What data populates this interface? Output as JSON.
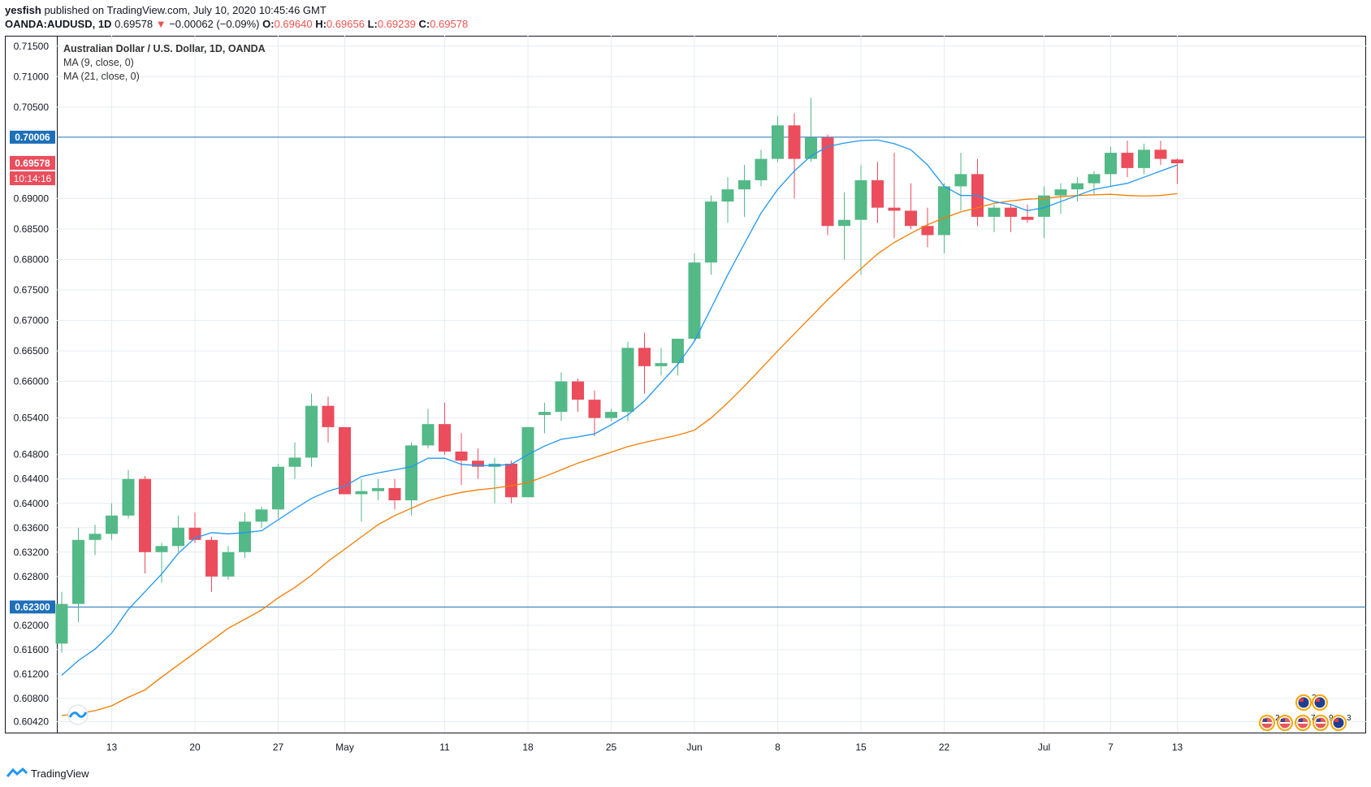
{
  "header": {
    "publisher": "yesfish",
    "published_text": "published on TradingView.com, July 10, 2020 10:45:46 GMT",
    "symbol": "OANDA:AUDUSD, 1D",
    "last": "0.69578",
    "change_arrow": "▼",
    "change": "−0.00062 (−0.09%)",
    "o_label": "O:",
    "o": "0.69640",
    "h_label": "H:",
    "h": "0.69656",
    "l_label": "L:",
    "l": "0.69239",
    "c_label": "C:",
    "c": "0.69578"
  },
  "legend": {
    "title": "Australian Dollar / U.S. Dollar, 1D, OANDA",
    "ma9": "MA (9, close, 0)",
    "ma21": "MA (21, close, 0)"
  },
  "footer": {
    "brand": "TradingView",
    "logo_icon": "tradingview-logo-icon"
  },
  "colors": {
    "up": "#53b987",
    "down": "#eb4d5c",
    "ma9": "#2196f3",
    "ma21": "#f57c00",
    "hline": "#1e6fb8",
    "price_badge": "#eb4d5c",
    "hline_badge": "#1e6fb8",
    "grid": "#e6ecf2"
  },
  "chart_data": {
    "type": "candlestick",
    "title": "Australian Dollar / U.S. Dollar, 1D, OANDA",
    "ylim": [
      0.6024,
      0.7167
    ],
    "y_ticks": [
      "0.71500",
      "0.71000",
      "0.70500",
      "0.69000",
      "0.68500",
      "0.68000",
      "0.67500",
      "0.67000",
      "0.66500",
      "0.66000",
      "0.65400",
      "0.64800",
      "0.64400",
      "0.64000",
      "0.63600",
      "0.63200",
      "0.62800",
      "0.62000",
      "0.61600",
      "0.61200",
      "0.60800",
      "0.60420"
    ],
    "x_ticks": [
      {
        "label": "13",
        "index": 3
      },
      {
        "label": "20",
        "index": 8
      },
      {
        "label": "27",
        "index": 13
      },
      {
        "label": "May",
        "index": 17
      },
      {
        "label": "11",
        "index": 23
      },
      {
        "label": "18",
        "index": 28
      },
      {
        "label": "25",
        "index": 33
      },
      {
        "label": "Jun",
        "index": 38
      },
      {
        "label": "8",
        "index": 43
      },
      {
        "label": "15",
        "index": 48
      },
      {
        "label": "22",
        "index": 53
      },
      {
        "label": "Jul",
        "index": 59
      },
      {
        "label": "7",
        "index": 63
      },
      {
        "label": "13",
        "index": 67
      }
    ],
    "candles": [
      [
        0.617,
        0.6255,
        0.6155,
        0.6235
      ],
      [
        0.6235,
        0.636,
        0.6205,
        0.634
      ],
      [
        0.634,
        0.6365,
        0.6315,
        0.635
      ],
      [
        0.635,
        0.64,
        0.634,
        0.638
      ],
      [
        0.638,
        0.6455,
        0.6375,
        0.644
      ],
      [
        0.644,
        0.6445,
        0.6285,
        0.632
      ],
      [
        0.632,
        0.6335,
        0.627,
        0.633
      ],
      [
        0.633,
        0.638,
        0.632,
        0.636
      ],
      [
        0.636,
        0.6385,
        0.6335,
        0.634
      ],
      [
        0.634,
        0.6345,
        0.6255,
        0.628
      ],
      [
        0.628,
        0.633,
        0.6275,
        0.632
      ],
      [
        0.632,
        0.6385,
        0.631,
        0.637
      ],
      [
        0.637,
        0.6395,
        0.636,
        0.639
      ],
      [
        0.639,
        0.6465,
        0.6375,
        0.646
      ],
      [
        0.646,
        0.65,
        0.644,
        0.6475
      ],
      [
        0.6475,
        0.658,
        0.646,
        0.656
      ],
      [
        0.656,
        0.6575,
        0.65,
        0.6525
      ],
      [
        0.6525,
        0.6525,
        0.6415,
        0.6415
      ],
      [
        0.6415,
        0.644,
        0.637,
        0.642
      ],
      [
        0.642,
        0.644,
        0.6405,
        0.6425
      ],
      [
        0.6425,
        0.644,
        0.639,
        0.6405
      ],
      [
        0.6405,
        0.65,
        0.638,
        0.6495
      ],
      [
        0.6495,
        0.6555,
        0.649,
        0.653
      ],
      [
        0.653,
        0.6565,
        0.648,
        0.6485
      ],
      [
        0.6485,
        0.6515,
        0.643,
        0.647
      ],
      [
        0.647,
        0.649,
        0.644,
        0.646
      ],
      [
        0.646,
        0.6475,
        0.64,
        0.6465
      ],
      [
        0.6465,
        0.647,
        0.64,
        0.641
      ],
      [
        0.641,
        0.6525,
        0.641,
        0.6525
      ],
      [
        0.6545,
        0.6565,
        0.6515,
        0.655
      ],
      [
        0.655,
        0.6615,
        0.6535,
        0.66
      ],
      [
        0.66,
        0.6605,
        0.655,
        0.657
      ],
      [
        0.657,
        0.6585,
        0.651,
        0.654
      ],
      [
        0.654,
        0.6555,
        0.6535,
        0.655
      ],
      [
        0.655,
        0.6665,
        0.6535,
        0.6655
      ],
      [
        0.6655,
        0.668,
        0.658,
        0.6625
      ],
      [
        0.6625,
        0.6655,
        0.661,
        0.663
      ],
      [
        0.663,
        0.667,
        0.661,
        0.667
      ],
      [
        0.667,
        0.681,
        0.6665,
        0.6795
      ],
      [
        0.6795,
        0.6905,
        0.6775,
        0.6895
      ],
      [
        0.6895,
        0.6935,
        0.686,
        0.6915
      ],
      [
        0.6915,
        0.6955,
        0.687,
        0.693
      ],
      [
        0.693,
        0.698,
        0.692,
        0.6965
      ],
      [
        0.6965,
        0.7035,
        0.696,
        0.702
      ],
      [
        0.702,
        0.704,
        0.69,
        0.6965
      ],
      [
        0.6965,
        0.7065,
        0.696,
        0.7
      ],
      [
        0.7,
        0.7005,
        0.684,
        0.6855
      ],
      [
        0.6855,
        0.691,
        0.68,
        0.6865
      ],
      [
        0.6865,
        0.6955,
        0.6775,
        0.693
      ],
      [
        0.693,
        0.696,
        0.686,
        0.6885
      ],
      [
        0.6885,
        0.6975,
        0.6835,
        0.688
      ],
      [
        0.688,
        0.6925,
        0.685,
        0.6855
      ],
      [
        0.6855,
        0.6885,
        0.682,
        0.684
      ],
      [
        0.684,
        0.6925,
        0.681,
        0.692
      ],
      [
        0.692,
        0.6975,
        0.688,
        0.694
      ],
      [
        0.694,
        0.6965,
        0.6855,
        0.687
      ],
      [
        0.687,
        0.689,
        0.6845,
        0.6885
      ],
      [
        0.6885,
        0.689,
        0.6845,
        0.687
      ],
      [
        0.687,
        0.689,
        0.686,
        0.6865
      ],
      [
        0.687,
        0.692,
        0.6835,
        0.6905
      ],
      [
        0.6905,
        0.6925,
        0.6875,
        0.6915
      ],
      [
        0.6915,
        0.6935,
        0.6895,
        0.6925
      ],
      [
        0.6925,
        0.6945,
        0.6905,
        0.694
      ],
      [
        0.694,
        0.6985,
        0.692,
        0.6975
      ],
      [
        0.6975,
        0.6995,
        0.6935,
        0.695
      ],
      [
        0.695,
        0.699,
        0.694,
        0.698
      ],
      [
        0.698,
        0.6995,
        0.6955,
        0.6965
      ],
      [
        0.6964,
        0.69656,
        0.69239,
        0.69578
      ]
    ],
    "ma9": [
      0.6118,
      0.6142,
      0.6161,
      0.6187,
      0.6226,
      0.6255,
      0.6284,
      0.6318,
      0.6343,
      0.6352,
      0.635,
      0.6352,
      0.6355,
      0.6373,
      0.6391,
      0.6408,
      0.642,
      0.6428,
      0.6444,
      0.645,
      0.6455,
      0.646,
      0.6474,
      0.6474,
      0.6464,
      0.6462,
      0.6462,
      0.6464,
      0.648,
      0.6494,
      0.6505,
      0.6509,
      0.6514,
      0.6529,
      0.6545,
      0.6568,
      0.6598,
      0.6628,
      0.6666,
      0.672,
      0.6775,
      0.6826,
      0.6876,
      0.6915,
      0.6945,
      0.697,
      0.6985,
      0.6991,
      0.6995,
      0.6996,
      0.699,
      0.698,
      0.6955,
      0.692,
      0.6905,
      0.6905,
      0.6895,
      0.689,
      0.688,
      0.6885,
      0.6895,
      0.6905,
      0.6915,
      0.692,
      0.6925,
      0.6935,
      0.6945,
      0.6955
    ],
    "ma21": [
      0.6052,
      0.6055,
      0.606,
      0.6068,
      0.6082,
      0.6094,
      0.6115,
      0.6135,
      0.6155,
      0.6175,
      0.6195,
      0.621,
      0.6225,
      0.6245,
      0.6262,
      0.6282,
      0.6305,
      0.6325,
      0.6345,
      0.6365,
      0.638,
      0.6392,
      0.6404,
      0.6412,
      0.6418,
      0.6422,
      0.6425,
      0.6429,
      0.6434,
      0.6444,
      0.6455,
      0.6466,
      0.6475,
      0.6484,
      0.6493,
      0.65,
      0.6506,
      0.6512,
      0.652,
      0.654,
      0.6565,
      0.6592,
      0.6621,
      0.665,
      0.6678,
      0.6706,
      0.6734,
      0.676,
      0.6785,
      0.6809,
      0.6828,
      0.6843,
      0.6857,
      0.6868,
      0.6878,
      0.6885,
      0.6892,
      0.6896,
      0.6899,
      0.69,
      0.6903,
      0.6905,
      0.6906,
      0.6907,
      0.6905,
      0.6904,
      0.6905,
      0.6908
    ],
    "hlines": [
      {
        "value": 0.70006,
        "label": "0.70006"
      },
      {
        "value": 0.623,
        "label": "0.62300"
      }
    ],
    "price_badge": {
      "value": 0.69578,
      "label": "0.69578",
      "countdown": "10:14:16"
    },
    "event_icons": [
      {
        "flag": "au",
        "count": "2"
      },
      {
        "flag": "au",
        "count": ""
      },
      {
        "flag": "us",
        "count": "2"
      },
      {
        "flag": "us",
        "count": ""
      },
      {
        "flag": "us",
        "count": "7"
      },
      {
        "flag": "us",
        "count": "9"
      },
      {
        "flag": "au",
        "count": "3"
      }
    ]
  }
}
